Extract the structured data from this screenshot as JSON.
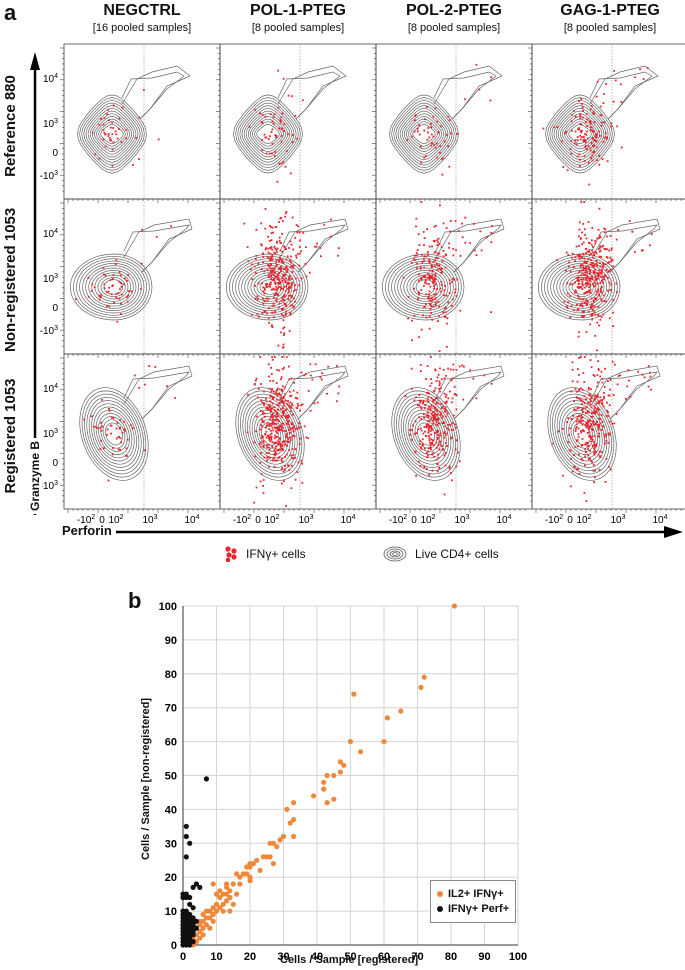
{
  "panel_a": {
    "letter": "a",
    "columns": [
      {
        "title": "NEGCTRL",
        "subtitle": "[16 pooled samples]"
      },
      {
        "title": "POL-1-PTEG",
        "subtitle": "[8 pooled samples]"
      },
      {
        "title": "POL-2-PTEG",
        "subtitle": "[8 pooled samples]"
      },
      {
        "title": "GAG-1-PTEG",
        "subtitle": "[8 pooled samples]"
      }
    ],
    "rows": [
      {
        "label": "Reference 880"
      },
      {
        "label": "Non-registered 1053"
      },
      {
        "label": "Registered 1053"
      }
    ],
    "y_axis_title": "Granzyme B",
    "x_axis_title": "Perforin",
    "y_ticks": [
      "10^4",
      "10^3",
      "0",
      "-10^3"
    ],
    "x_ticks": [
      "-10^2",
      "0",
      "10^2",
      "10^3",
      "10^4"
    ],
    "legend": [
      {
        "label": "IFNγ+ cells",
        "color": "#e8232a"
      },
      {
        "label": "Live CD4+ cells",
        "color": "#555555"
      }
    ],
    "ifng_cell_counts_approx": [
      [
        45,
        60,
        55,
        150
      ],
      [
        60,
        350,
        230,
        380
      ],
      [
        55,
        420,
        300,
        320
      ]
    ]
  },
  "chart_data": {
    "type": "scatter",
    "panel_letter": "b",
    "title": "",
    "xlabel": "Cells / Sample  [registered]",
    "ylabel": "Cells / Sample  [non-registered]",
    "xlim": [
      0,
      100
    ],
    "ylim": [
      0,
      100
    ],
    "x_ticks": [
      0,
      10,
      20,
      30,
      40,
      50,
      60,
      70,
      80,
      90,
      100
    ],
    "y_ticks": [
      0,
      10,
      20,
      30,
      40,
      50,
      60,
      70,
      80,
      90,
      100
    ],
    "grid": true,
    "legend_position": "bottom-right",
    "series": [
      {
        "name": "IL2+ IFNγ+",
        "color": "#f0883a",
        "points": [
          [
            81,
            100
          ],
          [
            51,
            74
          ],
          [
            72,
            79
          ],
          [
            71,
            76
          ],
          [
            65,
            69
          ],
          [
            61,
            67
          ],
          [
            50,
            60
          ],
          [
            60,
            60
          ],
          [
            53,
            57
          ],
          [
            47,
            54
          ],
          [
            48,
            53
          ],
          [
            47,
            51
          ],
          [
            43,
            50
          ],
          [
            45,
            50
          ],
          [
            42,
            48
          ],
          [
            42,
            46
          ],
          [
            39,
            44
          ],
          [
            43,
            42
          ],
          [
            45,
            43
          ],
          [
            33,
            42
          ],
          [
            31,
            40
          ],
          [
            33,
            37
          ],
          [
            32,
            36
          ],
          [
            30,
            32
          ],
          [
            33,
            32
          ],
          [
            29,
            31
          ],
          [
            26,
            30
          ],
          [
            27,
            30
          ],
          [
            28,
            29
          ],
          [
            26,
            26
          ],
          [
            24,
            26
          ],
          [
            25,
            26
          ],
          [
            27,
            24
          ],
          [
            22,
            25
          ],
          [
            20,
            24
          ],
          [
            19,
            23
          ],
          [
            21,
            24
          ],
          [
            20,
            23
          ],
          [
            23,
            22
          ],
          [
            19,
            21
          ],
          [
            16,
            21
          ],
          [
            17,
            20
          ],
          [
            20,
            20
          ],
          [
            20,
            19
          ],
          [
            17,
            18
          ],
          [
            15,
            18
          ],
          [
            9,
            18
          ],
          [
            13,
            18
          ],
          [
            14,
            16
          ],
          [
            13,
            17
          ],
          [
            11,
            16
          ],
          [
            12,
            15
          ],
          [
            13,
            15
          ],
          [
            10,
            15
          ],
          [
            14,
            14
          ],
          [
            11,
            14
          ],
          [
            13,
            13
          ],
          [
            12,
            12
          ],
          [
            10,
            12
          ],
          [
            11,
            11
          ],
          [
            9,
            11
          ],
          [
            8,
            10
          ],
          [
            7,
            10
          ],
          [
            9,
            9
          ],
          [
            6,
            9
          ],
          [
            8,
            8
          ],
          [
            7,
            8
          ],
          [
            5,
            7
          ],
          [
            6,
            7
          ],
          [
            7,
            6
          ],
          [
            5,
            6
          ],
          [
            4,
            5
          ],
          [
            6,
            5
          ],
          [
            5,
            4
          ],
          [
            3,
            4
          ],
          [
            4,
            3
          ],
          [
            3,
            3
          ],
          [
            2,
            2
          ],
          [
            3,
            2
          ],
          [
            2,
            1
          ],
          [
            4,
            1
          ],
          [
            1,
            1
          ],
          [
            2,
            0
          ],
          [
            3,
            0
          ],
          [
            5,
            2
          ],
          [
            10,
            10
          ],
          [
            12,
            10
          ],
          [
            9,
            7
          ],
          [
            8,
            5
          ],
          [
            6,
            3
          ],
          [
            16,
            15
          ],
          [
            18,
            21
          ],
          [
            15,
            12
          ],
          [
            14,
            10
          ]
        ]
      },
      {
        "name": "IFNγ+ Perf+",
        "color": "#111111",
        "points": [
          [
            7,
            49
          ],
          [
            1,
            35
          ],
          [
            1,
            32
          ],
          [
            2,
            30
          ],
          [
            1,
            26
          ],
          [
            0,
            15
          ],
          [
            1,
            15
          ],
          [
            0,
            14
          ],
          [
            1,
            14
          ],
          [
            2,
            14
          ],
          [
            3,
            17
          ],
          [
            4,
            18
          ],
          [
            5,
            17
          ],
          [
            2,
            12
          ],
          [
            3,
            11
          ],
          [
            1,
            10
          ],
          [
            0,
            10
          ],
          [
            0,
            9
          ],
          [
            1,
            9
          ],
          [
            2,
            9
          ],
          [
            0,
            8
          ],
          [
            1,
            8
          ],
          [
            2,
            8
          ],
          [
            3,
            8
          ],
          [
            0,
            7
          ],
          [
            1,
            7
          ],
          [
            2,
            7
          ],
          [
            3,
            7
          ],
          [
            4,
            7
          ],
          [
            0,
            6
          ],
          [
            1,
            6
          ],
          [
            2,
            6
          ],
          [
            3,
            6
          ],
          [
            0,
            5
          ],
          [
            1,
            5
          ],
          [
            2,
            5
          ],
          [
            3,
            5
          ],
          [
            4,
            5
          ],
          [
            0,
            4
          ],
          [
            1,
            4
          ],
          [
            2,
            4
          ],
          [
            3,
            4
          ],
          [
            0,
            3
          ],
          [
            1,
            3
          ],
          [
            2,
            3
          ],
          [
            3,
            3
          ],
          [
            0,
            2
          ],
          [
            1,
            2
          ],
          [
            2,
            2
          ],
          [
            0,
            1
          ],
          [
            1,
            1
          ],
          [
            2,
            1
          ],
          [
            0,
            0
          ],
          [
            1,
            0
          ],
          [
            2,
            0
          ],
          [
            3,
            1
          ]
        ]
      }
    ]
  }
}
